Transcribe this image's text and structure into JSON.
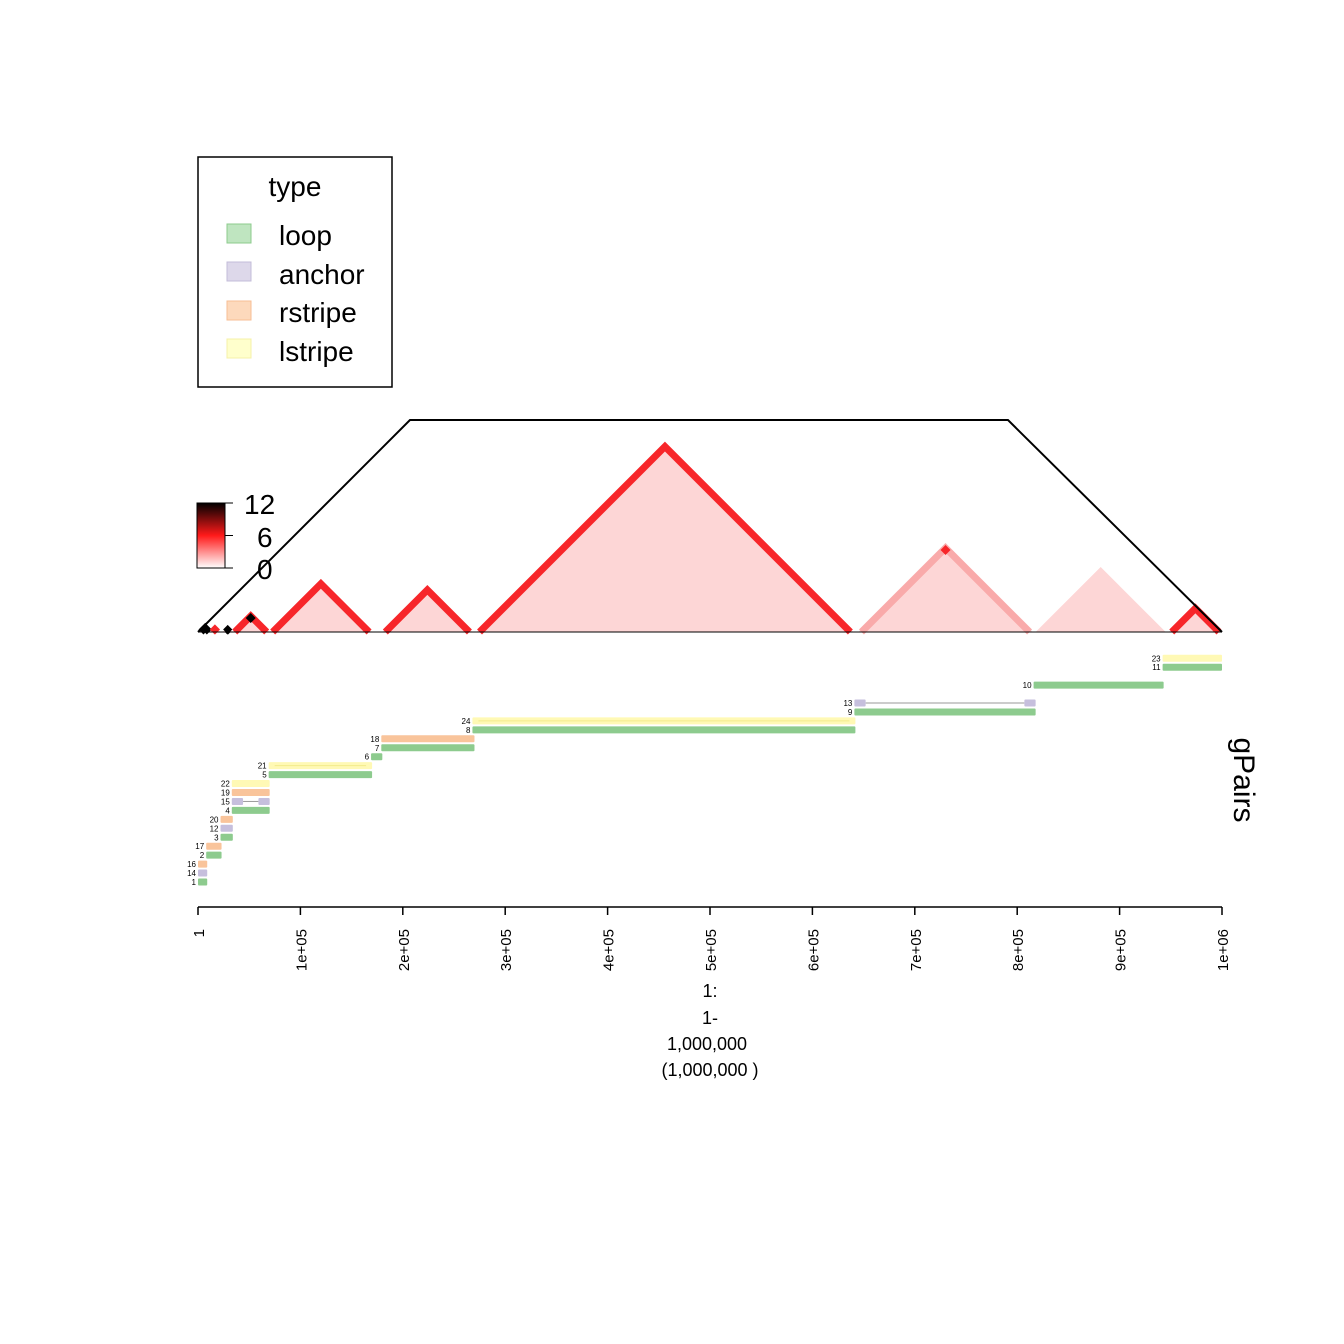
{
  "legend": {
    "title": "type",
    "items": [
      {
        "label": "loop",
        "color": "#BFE5C0",
        "border": "#8CCB8D"
      },
      {
        "label": "anchor",
        "color": "#DDD8EA",
        "border": "#C3BCD9"
      },
      {
        "label": "rstripe",
        "color": "#FDD9BC",
        "border": "#F7BE94"
      },
      {
        "label": "lstripe",
        "color": "#FFFFCC",
        "border": "#F5F0A8"
      }
    ]
  },
  "colorbar": {
    "ticks": [
      "12",
      "6",
      "0"
    ],
    "values": [
      12,
      6,
      0
    ]
  },
  "track_label": "gPairs",
  "chart_data": {
    "type": "table",
    "region": {
      "start": 1,
      "end": 1000000
    },
    "x_ticks": [
      "1",
      "1e+05",
      "2e+05",
      "3e+05",
      "4e+05",
      "5e+05",
      "6e+05",
      "7e+05",
      "8e+05",
      "9e+05",
      "1e+06"
    ],
    "x_tick_values": [
      1,
      100000,
      200000,
      300000,
      400000,
      500000,
      600000,
      700000,
      800000,
      900000,
      1000000
    ],
    "xlabel_lines": [
      "1:",
      "1-",
      "1,000,000",
      "(1,000,000 )"
    ],
    "colors": {
      "loop": "#8DCB8E",
      "anchor": "#C6BFDD",
      "rstripe": "#F9C49B",
      "lstripe": "#FFF9B5",
      "heat_fill": "#FDD6D6",
      "heat_edge": "#F7262A",
      "heat_edge_light": "#F9AAAA",
      "heat_dark": "#000000"
    },
    "domains": [
      {
        "start": 1,
        "end": 14000,
        "edge": "dark"
      },
      {
        "start": 11000,
        "end": 22000,
        "edge": "red"
      },
      {
        "start": 24000,
        "end": 34000,
        "edge": "dark"
      },
      {
        "start": 33000,
        "end": 70000,
        "edge": "red",
        "peak": "dark"
      },
      {
        "start": 70000,
        "end": 170000,
        "edge": "red"
      },
      {
        "start": 180000,
        "end": 268000,
        "edge": "red"
      },
      {
        "start": 272000,
        "end": 640000,
        "edge": "red"
      },
      {
        "start": 645000,
        "end": 815000,
        "edge": "light",
        "peak": "red"
      },
      {
        "start": 818000,
        "end": 945000,
        "edge": "none"
      },
      {
        "start": 948000,
        "end": 1000000,
        "edge": "red"
      }
    ],
    "outline": [
      {
        "x": 1,
        "h": 0
      },
      {
        "x": 207000,
        "h": 207000
      },
      {
        "x": 791000,
        "h": 207000
      },
      {
        "x": 1000000,
        "h": 0
      }
    ],
    "pairs": [
      {
        "id": "1",
        "type": "loop",
        "row": 0,
        "start": 1,
        "end": 9000
      },
      {
        "id": "14",
        "type": "anchor",
        "row": 1,
        "start": 1,
        "end": 9000
      },
      {
        "id": "16",
        "type": "rstripe",
        "row": 2,
        "start": 1,
        "end": 9000
      },
      {
        "id": "2",
        "type": "loop",
        "row": 3,
        "start": 8000,
        "end": 23000
      },
      {
        "id": "17",
        "type": "rstripe",
        "row": 4,
        "start": 8000,
        "end": 23000
      },
      {
        "id": "3",
        "type": "loop",
        "row": 5,
        "start": 22000,
        "end": 34000
      },
      {
        "id": "12",
        "type": "anchor",
        "row": 6,
        "start": 22000,
        "end": 34000
      },
      {
        "id": "20",
        "type": "rstripe",
        "row": 7,
        "start": 22000,
        "end": 34000
      },
      {
        "id": "4",
        "type": "loop",
        "row": 8,
        "start": 33000,
        "end": 70000
      },
      {
        "id": "15",
        "type": "anchor",
        "row": 9,
        "start": 33000,
        "end": 70000,
        "a1": 44000,
        "a2": 59000
      },
      {
        "id": "19",
        "type": "rstripe",
        "row": 10,
        "start": 33000,
        "end": 70000
      },
      {
        "id": "22",
        "type": "lstripe",
        "row": 11,
        "start": 33000,
        "end": 70000
      },
      {
        "id": "5",
        "type": "loop",
        "row": 12,
        "start": 69000,
        "end": 170000
      },
      {
        "id": "21",
        "type": "lstripe",
        "row": 13,
        "start": 69000,
        "end": 170000
      },
      {
        "id": "6",
        "type": "loop",
        "row": 14,
        "start": 169000,
        "end": 180000
      },
      {
        "id": "7",
        "type": "loop",
        "row": 15,
        "start": 179000,
        "end": 270000
      },
      {
        "id": "18",
        "type": "rstripe",
        "row": 16,
        "start": 179000,
        "end": 270000
      },
      {
        "id": "8",
        "type": "loop",
        "row": 17,
        "start": 268000,
        "end": 642000
      },
      {
        "id": "24",
        "type": "lstripe",
        "row": 18,
        "start": 268000,
        "end": 642000
      },
      {
        "id": "9",
        "type": "loop",
        "row": 19,
        "start": 641000,
        "end": 818000
      },
      {
        "id": "13",
        "type": "anchor",
        "row": 20,
        "start": 641000,
        "end": 818000,
        "a1": 652000,
        "a2": 807000
      },
      {
        "id": "10",
        "type": "loop",
        "row": 22,
        "start": 816000,
        "end": 943000
      },
      {
        "id": "11",
        "type": "loop",
        "row": 24,
        "start": 942000,
        "end": 1000000
      },
      {
        "id": "23",
        "type": "lstripe",
        "row": 25,
        "start": 942000,
        "end": 1000000
      }
    ]
  }
}
